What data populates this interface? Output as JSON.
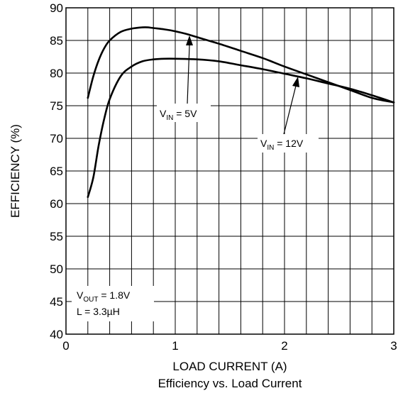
{
  "chart_data": {
    "type": "line",
    "title": "Efficiency vs. Load Current",
    "xlabel": "LOAD CURRENT (A)",
    "ylabel": "EFFICIENCY (%)",
    "xlim": [
      0,
      3
    ],
    "ylim": [
      40,
      90
    ],
    "x_ticks": [
      "0",
      "1",
      "2",
      "3"
    ],
    "y_ticks": [
      "40",
      "45",
      "50",
      "55",
      "60",
      "65",
      "70",
      "75",
      "80",
      "85",
      "90"
    ],
    "grid": true,
    "series": [
      {
        "name": "VIN = 5V",
        "x": [
          0.2,
          0.25,
          0.3,
          0.35,
          0.4,
          0.5,
          0.6,
          0.7,
          0.75,
          0.8,
          0.9,
          1.0,
          1.1,
          1.2,
          1.4,
          1.6,
          1.8,
          2.0,
          2.2,
          2.4,
          2.6,
          2.8,
          3.0
        ],
        "y": [
          76.2,
          79.5,
          82.0,
          83.8,
          85.0,
          86.3,
          86.8,
          87.0,
          87.0,
          86.9,
          86.7,
          86.4,
          86.0,
          85.5,
          84.5,
          83.4,
          82.3,
          81.0,
          79.8,
          78.6,
          77.4,
          76.2,
          75.5
        ]
      },
      {
        "name": "VIN = 12V",
        "x": [
          0.2,
          0.25,
          0.3,
          0.35,
          0.4,
          0.5,
          0.6,
          0.7,
          0.8,
          0.9,
          1.0,
          1.2,
          1.4,
          1.6,
          1.8,
          2.0,
          2.2,
          2.4,
          2.6,
          2.8,
          3.0
        ],
        "y": [
          61.0,
          64.0,
          69.0,
          73.0,
          76.0,
          79.5,
          81.0,
          81.8,
          82.1,
          82.2,
          82.2,
          82.1,
          81.8,
          81.2,
          80.6,
          79.9,
          79.2,
          78.4,
          77.6,
          76.6,
          75.5
        ]
      }
    ],
    "annotations": {
      "vin5": {
        "pre": "V",
        "sub": "IN",
        "post": " = 5V"
      },
      "vin12": {
        "pre": "V",
        "sub": "IN",
        "post": " = 12V"
      },
      "vout": {
        "pre": "V",
        "sub": "OUT",
        "post": " = 1.8V"
      },
      "inductor": "L = 3.3µH"
    }
  }
}
